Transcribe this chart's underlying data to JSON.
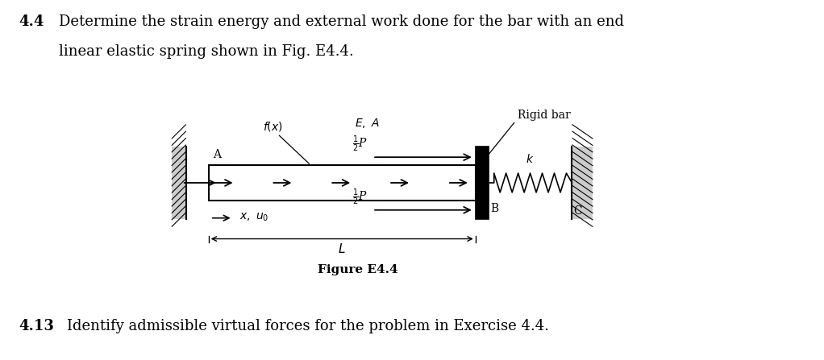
{
  "bg_color": "#ffffff",
  "text_color": "#000000",
  "title_44": "4.4",
  "line1_44": "Determine the strain energy and external work done for the bar with an end",
  "line2_44": "linear elastic spring shown in Fig. E4.4.",
  "title_413": "4.13",
  "line_413": "Identify admissible virtual forces for the problem in Exercise 4.4.",
  "figure_caption": "Figure E4.4",
  "fig_width": 10.22,
  "fig_height": 4.47,
  "wall_hatch_color": "#555555",
  "bar_color": "#ffffff",
  "rigid_bar_color": "#000000"
}
